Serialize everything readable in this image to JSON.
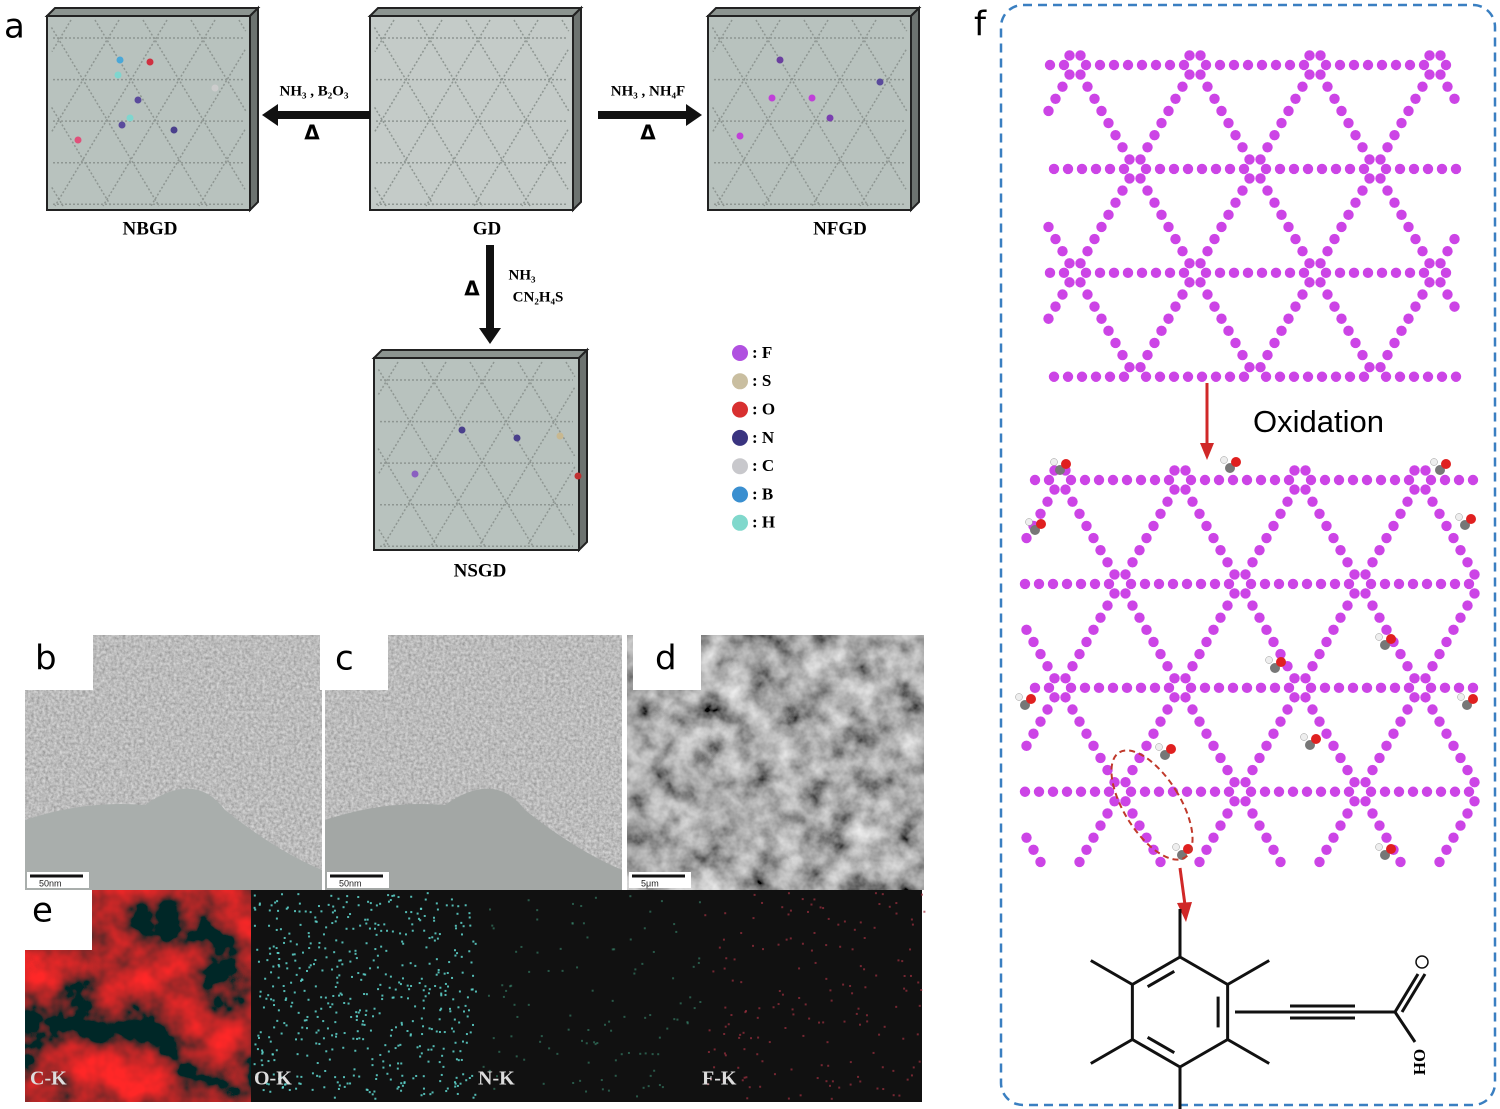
{
  "panel_a": {
    "label": "a",
    "structures": [
      "NBGD",
      "GD",
      "NFGD",
      "NSGD"
    ],
    "reactions": [
      {
        "reagents": [
          "NH₃ , B₂O₃"
        ],
        "condition": "Δ"
      },
      {
        "reagents": [
          "NH₃ , NH₄F"
        ],
        "condition": "Δ"
      },
      {
        "reagents": [
          "NH₃",
          "CN₂H₄S"
        ],
        "condition": "Δ"
      }
    ],
    "legend": [
      ": F",
      ": S",
      ": O",
      ": N",
      ": C",
      ": B",
      ": H"
    ]
  },
  "panel_b": {
    "label": "b",
    "scale_bar": "50nm"
  },
  "panel_c": {
    "label": "c",
    "scale_bar": "50nm"
  },
  "panel_d": {
    "label": "d",
    "scale_bar": "5μm"
  },
  "panel_e": {
    "label": "e",
    "maps": [
      "C-K",
      "O-K",
      "N-K",
      "F-K"
    ]
  },
  "panel_f": {
    "label": "f",
    "step": "Oxidation",
    "group": "OH"
  }
}
